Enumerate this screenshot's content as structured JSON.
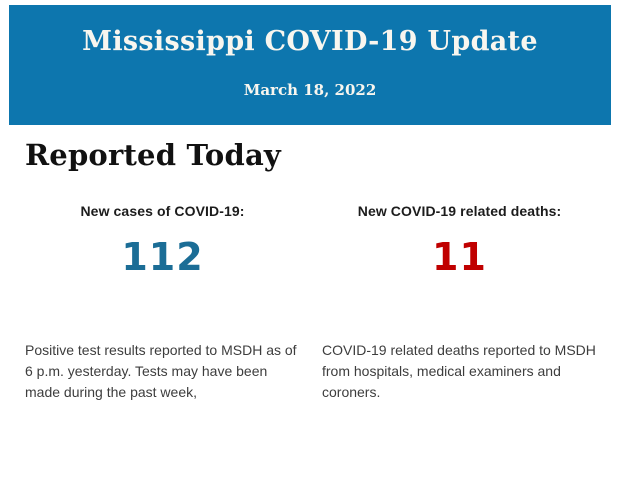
{
  "banner": {
    "title": "Mississippi COVID-19 Update",
    "date": "March 18, 2022",
    "bg_color": "#0d76ae",
    "text_color": "#f8f6ef"
  },
  "section": {
    "heading": "Reported Today"
  },
  "stats": [
    {
      "label": "New cases of COVID-19:",
      "value": "112",
      "value_color": "#1b6d96",
      "description": "Positive test results reported to MSDH as of 6 p.m. yesterday. Tests may have been made during the past week,"
    },
    {
      "label": "New COVID-19 related deaths:",
      "value": "11",
      "value_color": "#c00000",
      "description": "COVID-19 related deaths reported to MSDH from hospitals, medical examiners and coroners."
    }
  ]
}
